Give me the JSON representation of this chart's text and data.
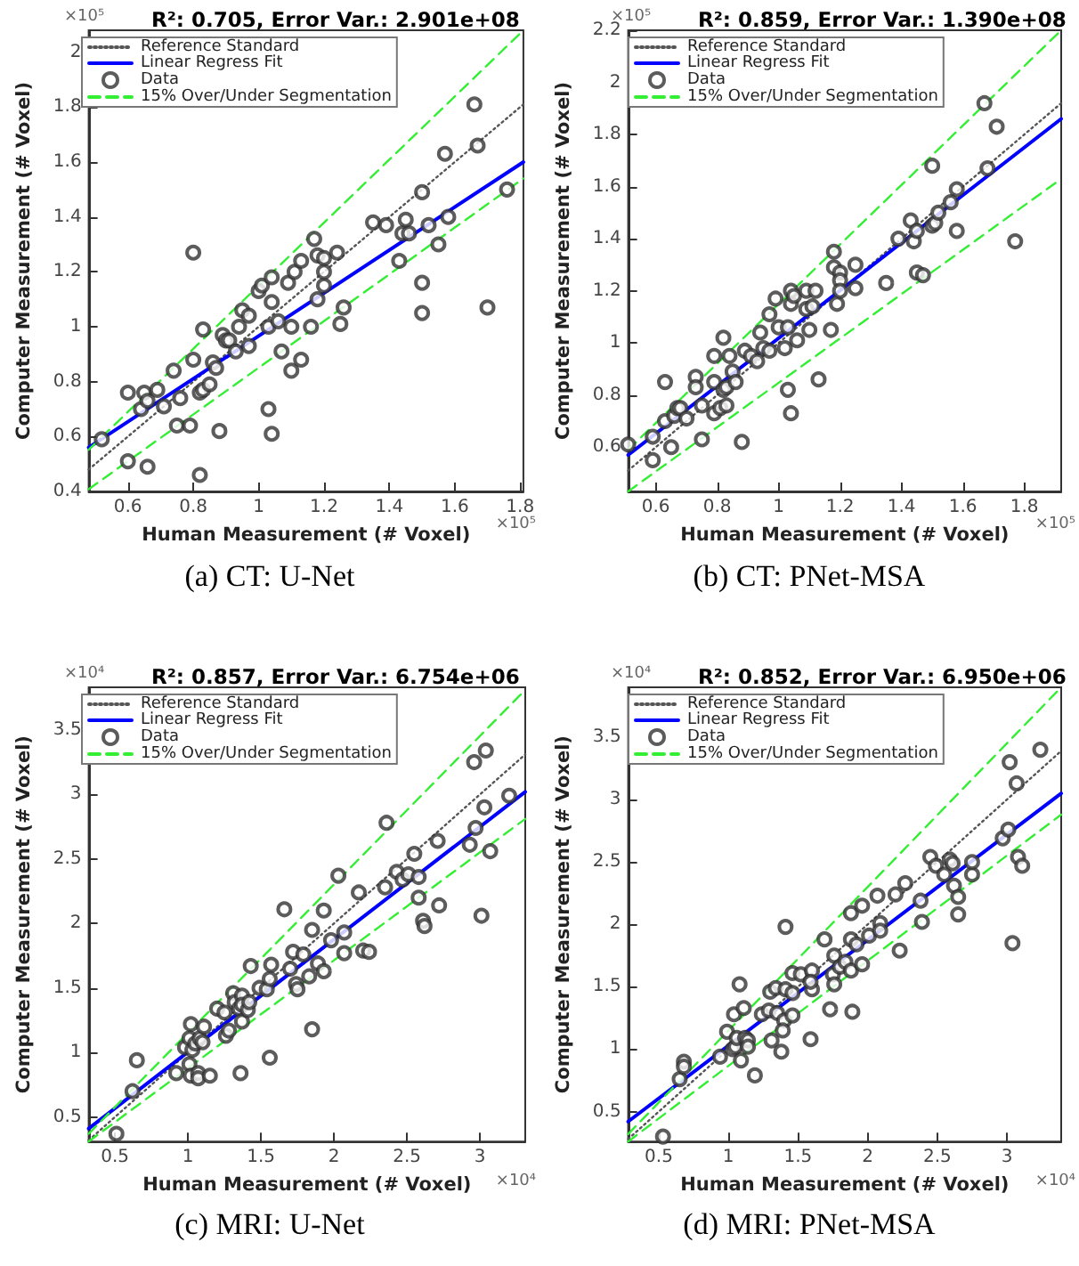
{
  "chart_data": [
    {
      "type": "scatter",
      "title": "R²: 0.705, Error Var.: 2.901e+08",
      "subtitle": "(a) CT: U-Net",
      "xlabel": "Human Measurement (# Voxel)",
      "ylabel": "Computer Measurement (# Voxel)",
      "annotations": [
        "×10⁵",
        "×10⁵"
      ],
      "xlim": [
        0.48,
        1.81
      ],
      "ylim": [
        0.4,
        2.08
      ],
      "xticks": [
        0.6,
        0.8,
        1,
        1.2,
        1.4,
        1.6,
        1.8
      ],
      "yticks": [
        0.4,
        0.6,
        0.8,
        1,
        1.2,
        1.4,
        1.6,
        1.8,
        2
      ],
      "grid": false,
      "legend": "top left",
      "series": [
        {
          "name": "Reference Standard",
          "type": "line",
          "color": "#555555",
          "line_style": "dotted",
          "marker": "none",
          "x": [
            0.48,
            1.81
          ],
          "values": [
            0.48,
            1.81
          ]
        },
        {
          "name": "Linear Regress Fit",
          "type": "line",
          "color": "#0000ff",
          "line_style": "solid",
          "marker": "none",
          "x": [
            0.48,
            1.81
          ],
          "values": [
            0.56,
            1.6
          ]
        },
        {
          "name": "Data",
          "type": "scatter",
          "color": "#333333",
          "marker": "circle",
          "x": [
            0.52,
            0.6,
            0.6,
            0.65,
            0.64,
            0.66,
            0.66,
            0.69,
            0.71,
            0.74,
            0.76,
            0.75,
            0.8,
            0.8,
            0.79,
            0.82,
            0.83,
            0.83,
            0.85,
            0.82,
            0.86,
            0.87,
            0.88,
            0.89,
            0.9,
            0.91,
            0.93,
            0.94,
            0.95,
            0.97,
            0.97,
            1,
            1.01,
            1.03,
            1.04,
            1.04,
            1.03,
            1.04,
            1.06,
            1.07,
            1.09,
            1.1,
            1.1,
            1.11,
            1.13,
            1.13,
            1.16,
            1.17,
            1.18,
            1.18,
            1.2,
            1.2,
            1.2,
            1.24,
            1.26,
            1.25,
            1.35,
            1.39,
            1.43,
            1.44,
            1.45,
            1.46,
            1.5,
            1.5,
            1.5,
            1.52,
            1.55,
            1.57,
            1.58,
            1.66,
            1.67,
            1.7,
            1.76
          ],
          "values": [
            0.59,
            0.76,
            0.51,
            0.76,
            0.7,
            0.73,
            0.49,
            0.77,
            0.71,
            0.84,
            0.74,
            0.64,
            1.27,
            0.88,
            0.64,
            0.76,
            0.77,
            0.99,
            0.79,
            0.46,
            0.87,
            0.85,
            0.62,
            0.97,
            0.95,
            0.95,
            0.91,
            1,
            1.06,
            1.04,
            0.93,
            1.13,
            1.15,
            1,
            1.09,
            1.18,
            0.7,
            0.61,
            1.02,
            0.91,
            1.16,
            0.84,
            1,
            1.2,
            1.24,
            0.88,
            1,
            1.32,
            1.26,
            1.1,
            1.15,
            1.2,
            1.25,
            1.27,
            1.07,
            1.01,
            1.38,
            1.37,
            1.24,
            1.34,
            1.39,
            1.34,
            1.16,
            1.05,
            1.49,
            1.37,
            1.3,
            1.63,
            1.4,
            1.81,
            1.66,
            1.07,
            1.5
          ]
        },
        {
          "name": "15% Over/Under Segmentation",
          "type": "line",
          "color": "#33ee33",
          "line_style": "dashed",
          "marker": "none",
          "x": [
            0.48,
            1.81
          ],
          "values": [
            0.552,
            2.08
          ]
        },
        {
          "type": "line",
          "color": "#33ee33",
          "line_style": "dashed",
          "marker": "none",
          "x": [
            0.48,
            1.81
          ],
          "values": [
            0.408,
            1.54
          ]
        }
      ]
    },
    {
      "type": "scatter",
      "title": "R²: 0.859, Error Var.: 1.390e+08",
      "subtitle": "(b) CT: PNet-MSA",
      "xlabel": "Human Measurement (# Voxel)",
      "ylabel": "Computer Measurement (# Voxel)",
      "annotations": [
        "×10⁵",
        "×10⁵"
      ],
      "xlim": [
        0.51,
        1.92
      ],
      "ylim": [
        0.43,
        2.2
      ],
      "xticks": [
        0.6,
        0.8,
        1,
        1.2,
        1.4,
        1.6,
        1.8
      ],
      "yticks": [
        0.6,
        0.8,
        1,
        1.2,
        1.4,
        1.6,
        1.8,
        2,
        2.2
      ],
      "grid": false,
      "legend": "top left",
      "series": [
        {
          "name": "Reference Standard",
          "type": "line",
          "color": "#555555",
          "line_style": "dotted",
          "marker": "none",
          "x": [
            0.51,
            1.92
          ],
          "values": [
            0.51,
            1.92
          ]
        },
        {
          "name": "Linear Regress Fit",
          "type": "line",
          "color": "#0000ff",
          "line_style": "solid",
          "marker": "none",
          "x": [
            0.51,
            1.92
          ],
          "values": [
            0.57,
            1.86
          ]
        },
        {
          "name": "Data",
          "type": "scatter",
          "color": "#333333",
          "marker": "circle",
          "x": [
            0.51,
            0.59,
            0.59,
            0.63,
            0.63,
            0.65,
            0.66,
            0.67,
            0.68,
            0.7,
            0.73,
            0.73,
            0.75,
            0.75,
            0.79,
            0.79,
            0.79,
            0.81,
            0.82,
            0.82,
            0.83,
            0.83,
            0.84,
            0.85,
            0.86,
            0.88,
            0.89,
            0.91,
            0.93,
            0.94,
            0.95,
            0.97,
            0.97,
            0.99,
            1,
            1.02,
            1.03,
            1.04,
            1.03,
            1.04,
            1.04,
            1.06,
            1.05,
            1.09,
            1.09,
            1.1,
            1.11,
            1.12,
            1.13,
            1.17,
            1.18,
            1.18,
            1.19,
            1.2,
            1.2,
            1.2,
            1.25,
            1.25,
            1.35,
            1.39,
            1.43,
            1.44,
            1.45,
            1.45,
            1.47,
            1.5,
            1.5,
            1.51,
            1.52,
            1.56,
            1.58,
            1.58,
            1.67,
            1.68,
            1.71,
            1.77
          ],
          "values": [
            0.61,
            0.64,
            0.55,
            0.85,
            0.7,
            0.6,
            0.72,
            0.75,
            0.75,
            0.71,
            0.87,
            0.83,
            0.76,
            0.63,
            0.95,
            0.85,
            0.73,
            0.75,
            0.82,
            1.02,
            0.76,
            0.83,
            0.95,
            0.89,
            0.85,
            0.62,
            0.97,
            0.95,
            0.93,
            1.04,
            0.98,
            0.97,
            1.11,
            1.17,
            1.06,
            0.98,
            0.82,
            0.73,
            1.06,
            1.15,
            1.2,
            1.01,
            1.18,
            1.2,
            1.13,
            1.05,
            1.14,
            1.2,
            0.86,
            1.05,
            1.29,
            1.35,
            1.15,
            1.27,
            1.24,
            1.2,
            1.3,
            1.21,
            1.23,
            1.4,
            1.47,
            1.39,
            1.43,
            1.27,
            1.26,
            1.68,
            1.45,
            1.46,
            1.5,
            1.54,
            1.59,
            1.43,
            1.92,
            1.67,
            1.83,
            1.39
          ]
        },
        {
          "name": "15% Over/Under Segmentation",
          "type": "line",
          "color": "#33ee33",
          "line_style": "dashed",
          "marker": "none",
          "x": [
            0.51,
            1.92
          ],
          "values": [
            0.59,
            2.2
          ]
        },
        {
          "type": "line",
          "color": "#33ee33",
          "line_style": "dashed",
          "marker": "none",
          "x": [
            0.51,
            1.92
          ],
          "values": [
            0.43,
            1.63
          ]
        }
      ]
    },
    {
      "type": "scatter",
      "title": "R²: 0.857, Error Var.: 6.754e+06",
      "subtitle": "(c) MRI: U-Net",
      "xlabel": "Human Measurement (# Voxel)",
      "ylabel": "Computer Measurement (# Voxel)",
      "annotations": [
        "×10⁴",
        "×10⁴"
      ],
      "xlim": [
        0.32,
        3.31
      ],
      "ylim": [
        0.31,
        3.83
      ],
      "xticks": [
        0.5,
        1,
        1.5,
        2,
        2.5,
        3
      ],
      "yticks": [
        0.5,
        1,
        1.5,
        2,
        2.5,
        3,
        3.5
      ],
      "grid": false,
      "legend": "top left",
      "series": [
        {
          "name": "Reference Standard",
          "type": "line",
          "color": "#555555",
          "line_style": "dotted",
          "marker": "none",
          "x": [
            0.32,
            3.31
          ],
          "values": [
            0.32,
            3.31
          ]
        },
        {
          "name": "Linear Regress Fit",
          "type": "line",
          "color": "#0000ff",
          "line_style": "solid",
          "marker": "none",
          "x": [
            0.32,
            3.31
          ],
          "values": [
            0.41,
            3.02
          ]
        },
        {
          "name": "Data",
          "type": "scatter",
          "color": "#333333",
          "marker": "circle",
          "x": [
            0.51,
            0.62,
            0.65,
            0.92,
            0.98,
            1.01,
            1.01,
            1.02,
            1.03,
            1.02,
            1.05,
            1.07,
            1.07,
            1.08,
            1.11,
            1.1,
            1.15,
            1.2,
            1.25,
            1.26,
            1.28,
            1.31,
            1.32,
            1.35,
            1.37,
            1.37,
            1.37,
            1.36,
            1.41,
            1.43,
            1.42,
            1.49,
            1.54,
            1.56,
            1.57,
            1.56,
            1.66,
            1.7,
            1.72,
            1.74,
            1.75,
            1.79,
            1.83,
            1.85,
            1.85,
            1.89,
            1.93,
            1.93,
            1.98,
            2.03,
            2.07,
            2.07,
            2.17,
            2.2,
            2.24,
            2.35,
            2.36,
            2.43,
            2.47,
            2.51,
            2.55,
            2.58,
            2.58,
            2.61,
            2.62,
            2.71,
            2.72,
            2.93,
            2.96,
            2.97,
            3.01,
            3.03,
            3.04,
            3.07,
            3.2
          ],
          "values": [
            0.37,
            0.7,
            0.94,
            0.84,
            1.04,
            1.11,
            0.91,
            1.22,
            1.02,
            0.82,
            1.07,
            0.84,
            0.8,
            1.11,
            1.2,
            1.08,
            0.82,
            1.34,
            1.31,
            1.13,
            1.17,
            1.46,
            1.39,
            1.34,
            1.44,
            1.24,
            1.37,
            0.84,
            1.33,
            1.67,
            1.39,
            1.5,
            1.49,
            1.57,
            1.68,
            0.96,
            2.11,
            1.65,
            1.78,
            1.53,
            1.49,
            1.76,
            1.59,
            1.95,
            1.18,
            1.69,
            1.63,
            2.1,
            1.87,
            2.37,
            1.77,
            1.93,
            2.24,
            1.79,
            1.78,
            2.28,
            2.78,
            2.4,
            2.34,
            2.38,
            2.54,
            2.2,
            2.36,
            2.02,
            1.98,
            2.64,
            2.14,
            2.61,
            3.25,
            2.74,
            2.06,
            2.9,
            3.34,
            2.56,
            2.99
          ]
        },
        {
          "name": "15% Over/Under Segmentation",
          "type": "line",
          "color": "#33ee33",
          "line_style": "dashed",
          "marker": "none",
          "x": [
            0.32,
            3.31
          ],
          "values": [
            0.37,
            3.81
          ]
        },
        {
          "type": "line",
          "color": "#33ee33",
          "line_style": "dashed",
          "marker": "none",
          "x": [
            0.32,
            3.31
          ],
          "values": [
            0.31,
            2.81
          ]
        }
      ]
    },
    {
      "type": "scatter",
      "title": "R²: 0.852, Error Var.: 6.950e+06",
      "subtitle": "(d) MRI: PNet-MSA",
      "xlabel": "Human Measurement (# Voxel)",
      "ylabel": "Computer Measurement (# Voxel)",
      "annotations": [
        "×10⁴",
        "×10⁴"
      ],
      "xlim": [
        0.28,
        3.39
      ],
      "ylim": [
        0.26,
        3.9
      ],
      "xticks": [
        0.5,
        1,
        1.5,
        2,
        2.5,
        3
      ],
      "yticks": [
        0.5,
        1,
        1.5,
        2,
        2.5,
        3,
        3.5
      ],
      "grid": false,
      "legend": "top left",
      "series": [
        {
          "name": "Reference Standard",
          "type": "line",
          "color": "#555555",
          "line_style": "dotted",
          "marker": "none",
          "x": [
            0.28,
            3.39
          ],
          "values": [
            0.28,
            3.39
          ]
        },
        {
          "name": "Linear Regress Fit",
          "type": "line",
          "color": "#0000ff",
          "line_style": "solid",
          "marker": "none",
          "x": [
            0.28,
            3.39
          ],
          "values": [
            0.42,
            3.05
          ]
        },
        {
          "name": "Data",
          "type": "scatter",
          "color": "#333333",
          "marker": "circle",
          "x": [
            0.53,
            0.65,
            0.68,
            0.68,
            0.94,
            0.99,
            1.04,
            1.03,
            1.05,
            1.06,
            1.08,
            1.09,
            1.11,
            1.12,
            1.14,
            1.14,
            1.19,
            1.24,
            1.29,
            1.3,
            1.31,
            1.34,
            1.35,
            1.38,
            1.4,
            1.39,
            1.41,
            1.41,
            1.46,
            1.46,
            1.46,
            1.52,
            1.59,
            1.6,
            1.6,
            1.59,
            1.69,
            1.73,
            1.75,
            1.76,
            1.76,
            1.8,
            1.84,
            1.88,
            1.88,
            1.88,
            1.89,
            1.92,
            1.96,
            1.96,
            2.01,
            2.09,
            2.09,
            2.07,
            2.2,
            2.23,
            2.27,
            2.38,
            2.39,
            2.45,
            2.49,
            2.55,
            2.59,
            2.61,
            2.62,
            2.65,
            2.65,
            2.75,
            2.75,
            2.97,
            3.01,
            3.02,
            3.04,
            3.07,
            3.08,
            3.11,
            3.24
          ],
          "values": [
            0.3,
            0.76,
            0.9,
            0.86,
            0.94,
            1.14,
            1.28,
            1,
            1.02,
            1.09,
            1.52,
            0.91,
            1.33,
            1.09,
            1.07,
            1.02,
            0.79,
            1.28,
            1.31,
            1.46,
            1.07,
            1.49,
            1.29,
            0.98,
            1.23,
            1.15,
            1.98,
            1.48,
            1.27,
            1.61,
            1.45,
            1.6,
            1.08,
            1.63,
            1.48,
            1.54,
            1.88,
            1.32,
            1.6,
            1.75,
            1.52,
            1.66,
            1.7,
            2.09,
            1.88,
            1.63,
            1.3,
            1.84,
            2.15,
            1.68,
            1.91,
            2.01,
            1.95,
            2.23,
            2.24,
            1.79,
            2.33,
            2.19,
            2.02,
            2.54,
            2.47,
            2.4,
            2.52,
            2.49,
            2.31,
            2.22,
            2.08,
            2.4,
            2.5,
            2.69,
            2.76,
            3.3,
            1.85,
            3.13,
            2.54,
            2.47,
            3.4
          ]
        },
        {
          "name": "15% Over/Under Segmentation",
          "type": "line",
          "color": "#33ee33",
          "line_style": "dashed",
          "marker": "none",
          "x": [
            0.28,
            3.39
          ],
          "values": [
            0.32,
            3.9
          ]
        },
        {
          "type": "line",
          "color": "#33ee33",
          "line_style": "dashed",
          "marker": "none",
          "x": [
            0.28,
            3.39
          ],
          "values": [
            0.26,
            2.88
          ]
        }
      ]
    }
  ]
}
